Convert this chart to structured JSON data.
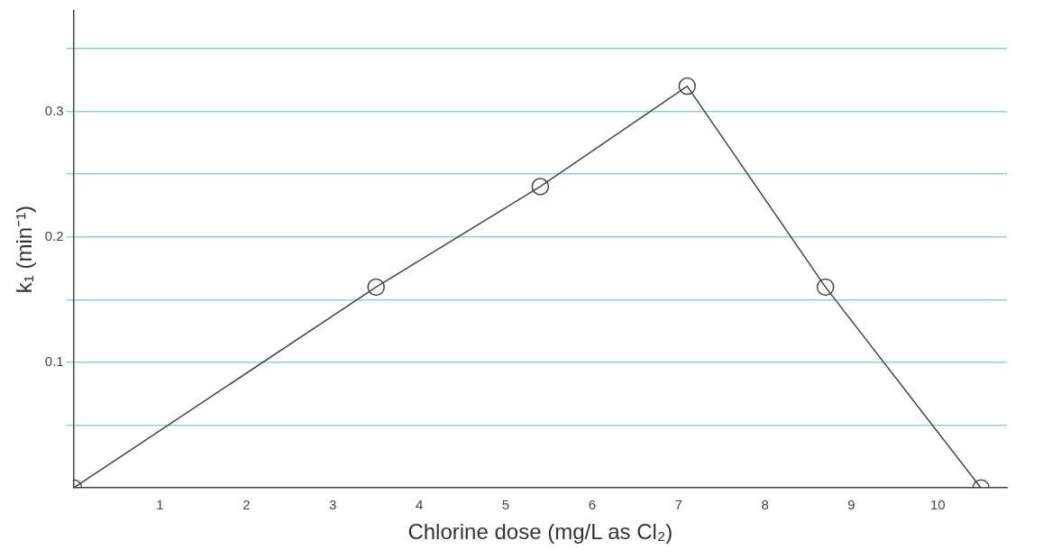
{
  "chart_data": {
    "type": "line",
    "xlabel": "Chlorine dose (mg/L as Cl₂)",
    "ylabel": "k₁ (min⁻¹)",
    "x": [
      0,
      3.5,
      5.4,
      7.1,
      8.7,
      10.5
    ],
    "series": [
      {
        "color": "#444444",
        "values": [
          0,
          0.16,
          0.24,
          0.32,
          0.16,
          0
        ]
      }
    ],
    "xlim": [
      0,
      10.8
    ],
    "xticks": [
      1,
      2,
      3,
      4,
      5,
      6,
      7,
      8,
      9,
      10
    ],
    "ylim": [
      0,
      0.38
    ],
    "yticks": [
      {
        "value": 0.05,
        "label": null
      },
      0.1,
      {
        "value": 0.15,
        "label": null
      },
      0.2,
      {
        "value": 0.25,
        "label": null
      },
      0.3,
      {
        "value": 0.35,
        "label": null
      }
    ],
    "grid": "y",
    "marker": "circle",
    "line_style": "solid"
  }
}
